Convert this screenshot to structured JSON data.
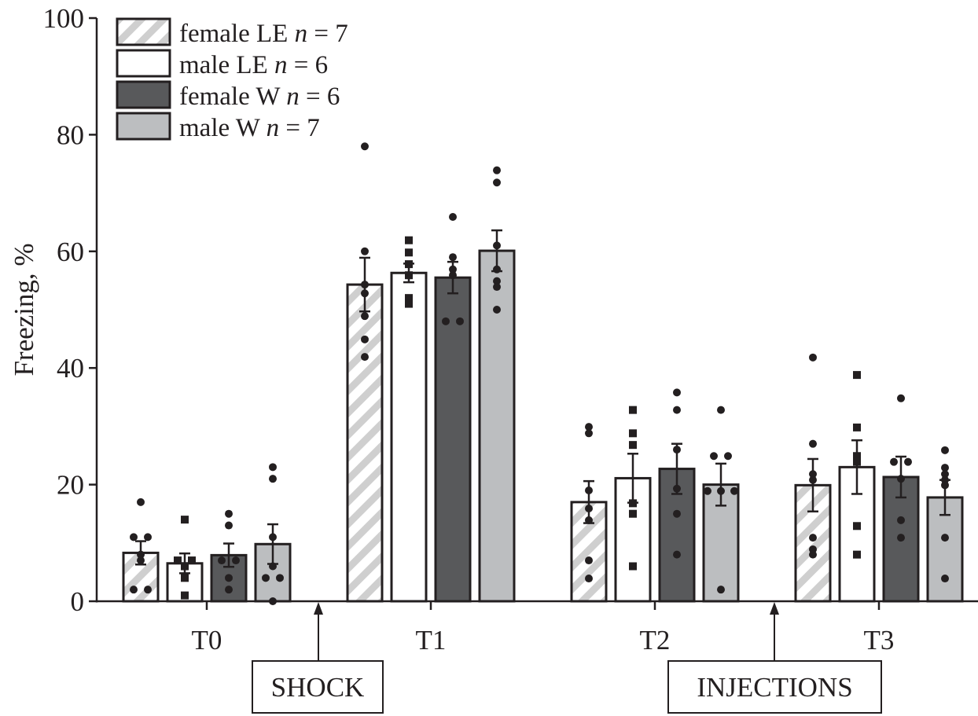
{
  "chart_data": {
    "type": "bar",
    "title": "",
    "xlabel": "",
    "ylabel": "Freezing, %",
    "ylim": [
      0,
      100
    ],
    "yticks": [
      0,
      20,
      40,
      60,
      80,
      100
    ],
    "grid": false,
    "legend_placement": "top-left",
    "categories": [
      "T0",
      "T1",
      "T2",
      "T3"
    ],
    "series": [
      {
        "name": "female LE",
        "n_label": "n = 7",
        "style": "hatched",
        "color": "#cfcfcf",
        "marker": "circle",
        "values": [
          8.3,
          54.3,
          17.0,
          19.9
        ],
        "sem": [
          2.0,
          4.6,
          3.6,
          4.5
        ],
        "points": [
          [
            17,
            11,
            11,
            8,
            7,
            2,
            2
          ],
          [
            78,
            60,
            54.3,
            52.8,
            48.9,
            44.9,
            41.9
          ],
          [
            29.9,
            28.8,
            19,
            15.9,
            13.9,
            7,
            3.9
          ],
          [
            41.8,
            27,
            21.8,
            20.8,
            10.9,
            8.9,
            8
          ]
        ]
      },
      {
        "name": "male LE",
        "n_label": "n = 6",
        "style": "solid",
        "color": "#ffffff",
        "marker": "square",
        "values": [
          6.5,
          56.3,
          21.1,
          23.0
        ],
        "sem": [
          1.7,
          1.6,
          4.2,
          4.6
        ],
        "points": [
          [
            14,
            7,
            7,
            6,
            4,
            1
          ],
          [
            61.9,
            59.8,
            57.8,
            55.9,
            52,
            51
          ],
          [
            32.8,
            28.8,
            26.8,
            16.8,
            15,
            6
          ],
          [
            38.8,
            29.8,
            24.9,
            23.9,
            12.9,
            8
          ]
        ]
      },
      {
        "name": "female W",
        "n_label": "n = 6",
        "style": "solid",
        "color": "#58595b",
        "marker": "circle",
        "values": [
          7.9,
          55.5,
          22.7,
          21.3
        ],
        "sem": [
          2.0,
          2.7,
          4.3,
          3.5
        ],
        "points": [
          [
            15,
            13,
            7,
            7,
            4,
            2
          ],
          [
            65.9,
            59,
            56.9,
            55.9,
            48,
            48
          ],
          [
            35.8,
            32.8,
            26,
            19.3,
            15,
            8
          ],
          [
            34.8,
            23.9,
            23.9,
            21,
            13.9,
            10.9
          ]
        ]
      },
      {
        "name": "male W",
        "n_label": "n = 7",
        "style": "solid",
        "color": "#bcbec0",
        "marker": "circle",
        "values": [
          9.8,
          60.1,
          20.0,
          17.8
        ],
        "sem": [
          3.4,
          3.5,
          3.6,
          3.0
        ],
        "points": [
          [
            23,
            21,
            11,
            6,
            4,
            4,
            0
          ],
          [
            73.9,
            71.8,
            61,
            56.9,
            54.9,
            53.9,
            50
          ],
          [
            32.8,
            24.9,
            24.9,
            18.9,
            18.9,
            18.9,
            2
          ],
          [
            25.9,
            22.9,
            21.8,
            20.8,
            19.9,
            10.9,
            3.9
          ]
        ]
      }
    ],
    "annotations": [
      {
        "text": "SHOCK",
        "between": [
          "T0",
          "T1"
        ]
      },
      {
        "text": "INJECTIONS",
        "between": [
          "T2",
          "T3"
        ]
      }
    ]
  }
}
